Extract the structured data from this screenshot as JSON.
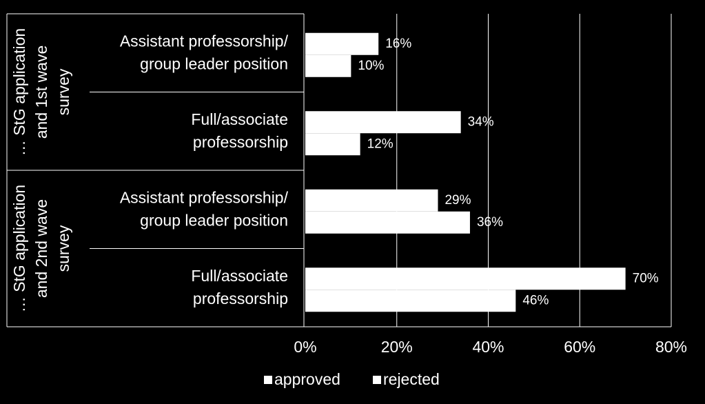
{
  "chart_data": {
    "type": "bar",
    "orientation": "horizontal",
    "groups": [
      {
        "label": [
          "… StG application",
          "and 1st  wave",
          "survey"
        ]
      },
      {
        "label": [
          "… StG application",
          "and 2nd  wave",
          "survey"
        ]
      }
    ],
    "categories": [
      [
        "Assistant professorship/",
        "group leader position"
      ],
      [
        "Full/associate",
        "professorship"
      ],
      [
        "Assistant professorship/",
        "group leader position"
      ],
      [
        "Full/associate",
        "professorship"
      ]
    ],
    "series": [
      {
        "name": "approved",
        "color": "#ffffff",
        "values": [
          16,
          34,
          29,
          70
        ],
        "value_labels": [
          "16%",
          "34%",
          "29%",
          "70%"
        ]
      },
      {
        "name": "rejected",
        "color": "#ffffff",
        "values": [
          10,
          12,
          36,
          46
        ],
        "value_labels": [
          "10%",
          "12%",
          "36%",
          "46%"
        ]
      }
    ],
    "xlim": [
      0,
      80
    ],
    "xticks": [
      {
        "value": 0,
        "label": "0%"
      },
      {
        "value": 20,
        "label": "20%"
      },
      {
        "value": 40,
        "label": "40%"
      },
      {
        "value": 60,
        "label": "60%"
      },
      {
        "value": 80,
        "label": "80%"
      }
    ],
    "grid": true,
    "legend": "bottom"
  }
}
